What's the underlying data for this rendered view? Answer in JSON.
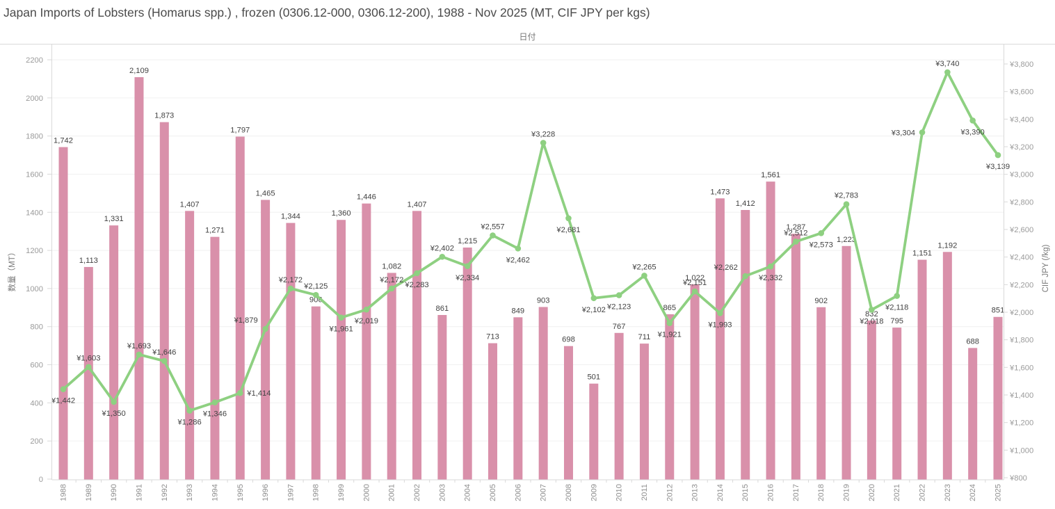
{
  "title": "Japan Imports of Lobsters (Homarus spp.) , frozen (0306.12-000, 0306.12-200), 1988 - Nov 2025 (MT, CIF JPY per kgs)",
  "top_axis_label": "日付",
  "left_axis": {
    "title": "数量（MT）",
    "tick_labels": [
      "0",
      "200",
      "400",
      "600",
      "800",
      "1000",
      "1200",
      "1400",
      "1600",
      "1800",
      "2000",
      "2200"
    ],
    "range": [
      0,
      2200
    ]
  },
  "right_axis": {
    "title": "CIF JPY (/kg)",
    "tick_labels": [
      "¥800",
      "¥1,000",
      "¥1,200",
      "¥1,400",
      "¥1,600",
      "¥1,800",
      "¥2,000",
      "¥2,200",
      "¥2,400",
      "¥2,600",
      "¥2,800",
      "¥3,000",
      "¥3,200",
      "¥3,400",
      "¥3,600",
      "¥3,800"
    ],
    "range": [
      800,
      3800
    ]
  },
  "colors": {
    "bar": "#d990aa",
    "line": "#8ed081",
    "value_label": "#424242",
    "tick_label": "#9b9b9b",
    "year_label": "#8f8f8f",
    "axis_title": "#787878",
    "grid": "#f0f0f0",
    "axis_line": "#d9d9d9",
    "title": "#4b4b4b",
    "background": "#ffffff"
  },
  "chart_data": {
    "type": "bar+line",
    "title": "Japan Imports of Lobsters (Homarus spp.) , frozen (0306.12-000, 0306.12-200), 1988 - Nov 2025 (MT, CIF JPY per kgs)",
    "xlabel": "日付",
    "grid": "horizontal",
    "legend_position": "none",
    "categories": [
      "1988",
      "1989",
      "1990",
      "1991",
      "1992",
      "1993",
      "1994",
      "1995",
      "1996",
      "1997",
      "1998",
      "1999",
      "2000",
      "2001",
      "2002",
      "2003",
      "2004",
      "2005",
      "2006",
      "2007",
      "2008",
      "2009",
      "2010",
      "2011",
      "2012",
      "2013",
      "2014",
      "2015",
      "2016",
      "2017",
      "2018",
      "2019",
      "2020",
      "2021",
      "2022",
      "2023",
      "2024",
      "2025"
    ],
    "left_axis_range": [
      0,
      2200
    ],
    "right_axis_range": [
      800,
      3800
    ],
    "series": [
      {
        "name": "数量（MT）",
        "type": "bar",
        "axis": "left",
        "values": [
          1742,
          1113,
          1331,
          2109,
          1873,
          1407,
          1271,
          1797,
          1465,
          1344,
          906,
          1360,
          1446,
          1082,
          1407,
          861,
          1215,
          713,
          849,
          903,
          698,
          501,
          767,
          711,
          865,
          1022,
          1473,
          1412,
          1561,
          1287,
          902,
          1223,
          832,
          795,
          1151,
          1192,
          688,
          851
        ],
        "labels": [
          "1,742",
          "1,113",
          "1,331",
          "2,109",
          "1,873",
          "1,407",
          "1,271",
          "1,797",
          "1,465",
          "1,344",
          "906",
          "1,360",
          "1,446",
          "1,082",
          "1,407",
          "861",
          "1,215",
          "713",
          "849",
          "903",
          "698",
          "501",
          "767",
          "711",
          "865",
          "1,022",
          "1,473",
          "1,412",
          "1,561",
          "1,287",
          "902",
          "1,223",
          "832",
          "795",
          "1,151",
          "1,192",
          "688",
          "851"
        ]
      },
      {
        "name": "CIF JPY (/kg)",
        "type": "line",
        "axis": "right",
        "values": [
          1442,
          1603,
          1350,
          1693,
          1646,
          1286,
          1346,
          1414,
          1879,
          2172,
          2125,
          1961,
          2019,
          2172,
          2283,
          2402,
          2334,
          2557,
          2462,
          3228,
          2681,
          2102,
          2123,
          2265,
          1921,
          2151,
          1993,
          2262,
          2332,
          2512,
          2573,
          2783,
          2018,
          2118,
          3304,
          3740,
          3390,
          3139
        ],
        "labels": [
          "¥1,442",
          "¥1,603",
          "¥1,350",
          "¥1,693",
          "¥1,646",
          "¥1,286",
          "¥1,346",
          "¥1,414",
          "¥1,879",
          "¥2,172",
          "¥2,125",
          "¥1,961",
          "¥2,019",
          "¥2,172",
          "¥2,283",
          "¥2,402",
          "¥2,334",
          "¥2,557",
          "¥2,462",
          "¥3,228",
          "¥2,681",
          "¥2,102",
          "¥2,123",
          "¥2,265",
          "¥1,921",
          "¥2,151",
          "¥1,993",
          "¥2,262",
          "¥2,332",
          "¥2,512",
          "¥2,573",
          "¥2,783",
          "¥2,018",
          "¥2,118",
          "¥3,304",
          "¥3,740",
          "¥3,390",
          "¥3,139"
        ],
        "label_side": [
          "below",
          "above",
          "below",
          "above",
          "above",
          "below",
          "below",
          "right",
          "above-left",
          "above",
          "above",
          "below",
          "below",
          "above",
          "below",
          "above",
          "below",
          "above",
          "below",
          "above",
          "below",
          "below",
          "below",
          "above",
          "below",
          "above",
          "below",
          "above-left",
          "below",
          "above",
          "below",
          "above",
          "below",
          "below",
          "left",
          "above",
          "below",
          "below"
        ]
      }
    ]
  }
}
